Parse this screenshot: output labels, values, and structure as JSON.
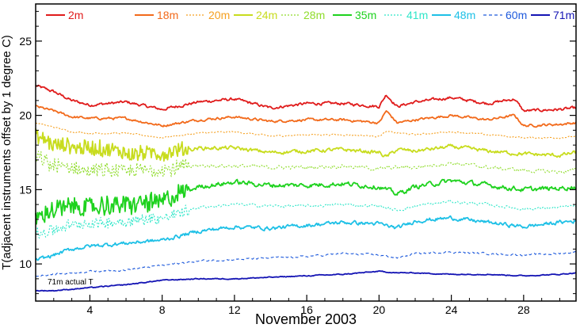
{
  "chart_data": {
    "type": "line",
    "title": "",
    "xlabel": "November 2003",
    "ylabel": "T(adjacent instruments offset by 1 degree C)",
    "xlim": [
      1,
      30.9
    ],
    "ylim": [
      7.5,
      27.5
    ],
    "xticks": [
      4,
      8,
      12,
      16,
      20,
      24,
      28
    ],
    "yticks": [
      10,
      15,
      20,
      25
    ],
    "grid": false,
    "legend_position": "top",
    "annotation": "71m actual T",
    "series": [
      {
        "name": "2m",
        "color": "#e01b1b",
        "dash": "solid",
        "anchors": [
          [
            1,
            22.0
          ],
          [
            2,
            21.6
          ],
          [
            3,
            21.0
          ],
          [
            4,
            20.7
          ],
          [
            6,
            20.9
          ],
          [
            8,
            20.4
          ],
          [
            10,
            20.9
          ],
          [
            12,
            21.1
          ],
          [
            14,
            20.5
          ],
          [
            16,
            20.8
          ],
          [
            18,
            20.8
          ],
          [
            20,
            20.6
          ],
          [
            20.4,
            21.4
          ],
          [
            21,
            20.6
          ],
          [
            22,
            20.9
          ],
          [
            24,
            21.2
          ],
          [
            26,
            20.8
          ],
          [
            27.5,
            21.1
          ],
          [
            28,
            20.3
          ],
          [
            30,
            20.4
          ],
          [
            30.9,
            20.5
          ]
        ]
      },
      {
        "name": "18m",
        "color": "#f26a1b",
        "dash": "solid",
        "anchors": [
          [
            1,
            20.6
          ],
          [
            2,
            20.3
          ],
          [
            3,
            19.9
          ],
          [
            4,
            19.8
          ],
          [
            6,
            19.8
          ],
          [
            8,
            19.3
          ],
          [
            10,
            19.7
          ],
          [
            12,
            19.9
          ],
          [
            14,
            19.6
          ],
          [
            16,
            19.7
          ],
          [
            18,
            19.7
          ],
          [
            20,
            19.5
          ],
          [
            20.4,
            20.3
          ],
          [
            21,
            19.5
          ],
          [
            22,
            19.7
          ],
          [
            24,
            20.0
          ],
          [
            26,
            19.7
          ],
          [
            27.5,
            20.0
          ],
          [
            28,
            19.3
          ],
          [
            30,
            19.4
          ],
          [
            30.9,
            19.5
          ]
        ]
      },
      {
        "name": "20m",
        "color": "#f5a020",
        "dash": "dotted",
        "anchors": [
          [
            1,
            19.5
          ],
          [
            2,
            19.2
          ],
          [
            3,
            18.9
          ],
          [
            4,
            18.8
          ],
          [
            6,
            18.8
          ],
          [
            8,
            18.5
          ],
          [
            10,
            18.8
          ],
          [
            12,
            18.9
          ],
          [
            14,
            18.6
          ],
          [
            16,
            18.7
          ],
          [
            18,
            18.7
          ],
          [
            20,
            18.6
          ],
          [
            20.4,
            18.9
          ],
          [
            22,
            18.7
          ],
          [
            24,
            18.9
          ],
          [
            26,
            18.7
          ],
          [
            28,
            18.5
          ],
          [
            30,
            18.5
          ],
          [
            30.9,
            18.6
          ]
        ]
      },
      {
        "name": "24m",
        "color": "#c8dc1e",
        "dash": "solid",
        "anchors": [
          [
            1,
            18.6
          ],
          [
            2,
            18.0
          ],
          [
            3,
            17.9
          ],
          [
            4,
            17.8
          ],
          [
            6,
            17.5
          ],
          [
            8,
            17.4
          ],
          [
            10,
            17.8
          ],
          [
            12,
            17.8
          ],
          [
            14,
            17.5
          ],
          [
            16,
            17.6
          ],
          [
            18,
            17.7
          ],
          [
            20,
            17.5
          ],
          [
            20.4,
            17.2
          ],
          [
            21,
            17.7
          ],
          [
            22,
            17.6
          ],
          [
            24,
            17.9
          ],
          [
            26,
            17.6
          ],
          [
            28,
            17.4
          ],
          [
            30,
            17.3
          ],
          [
            30.9,
            17.5
          ]
        ]
      },
      {
        "name": "28m",
        "color": "#8fdc2a",
        "dash": "dotted",
        "anchors": [
          [
            1,
            17.2
          ],
          [
            2,
            16.6
          ],
          [
            3,
            16.4
          ],
          [
            4,
            16.3
          ],
          [
            6,
            16.2
          ],
          [
            8,
            16.4
          ],
          [
            10,
            16.6
          ],
          [
            12,
            16.6
          ],
          [
            14,
            16.5
          ],
          [
            16,
            16.5
          ],
          [
            18,
            16.6
          ],
          [
            20,
            16.4
          ],
          [
            21,
            16.5
          ],
          [
            22,
            16.5
          ],
          [
            24,
            16.8
          ],
          [
            26,
            16.5
          ],
          [
            28,
            16.3
          ],
          [
            30,
            16.2
          ],
          [
            30.9,
            16.3
          ]
        ]
      },
      {
        "name": "35m",
        "color": "#1ed21e",
        "dash": "solid",
        "anchors": [
          [
            1,
            13.2
          ],
          [
            2,
            13.6
          ],
          [
            3,
            13.9
          ],
          [
            4,
            13.8
          ],
          [
            6,
            14.0
          ],
          [
            8,
            14.2
          ],
          [
            10,
            15.2
          ],
          [
            12,
            15.5
          ],
          [
            14,
            15.3
          ],
          [
            16,
            15.3
          ],
          [
            18,
            15.4
          ],
          [
            20,
            15.2
          ],
          [
            21,
            14.7
          ],
          [
            22,
            15.2
          ],
          [
            24,
            15.6
          ],
          [
            26,
            15.3
          ],
          [
            28,
            15.0
          ],
          [
            30,
            15.1
          ],
          [
            30.9,
            15.2
          ]
        ]
      },
      {
        "name": "41m",
        "color": "#2ee6c8",
        "dash": "dotted",
        "anchors": [
          [
            1,
            12.0
          ],
          [
            2,
            12.3
          ],
          [
            3,
            12.6
          ],
          [
            4,
            12.7
          ],
          [
            6,
            12.9
          ],
          [
            8,
            13.1
          ],
          [
            10,
            13.8
          ],
          [
            12,
            14.0
          ],
          [
            14,
            13.9
          ],
          [
            16,
            13.9
          ],
          [
            18,
            14.0
          ],
          [
            20,
            13.9
          ],
          [
            21,
            13.6
          ],
          [
            22,
            13.9
          ],
          [
            24,
            14.2
          ],
          [
            26,
            14.0
          ],
          [
            28,
            13.7
          ],
          [
            30,
            13.8
          ],
          [
            30.9,
            13.9
          ]
        ]
      },
      {
        "name": "48m",
        "color": "#1ec0e6",
        "dash": "solid",
        "anchors": [
          [
            1,
            10.2
          ],
          [
            2,
            10.6
          ],
          [
            3,
            11.0
          ],
          [
            4,
            11.2
          ],
          [
            6,
            11.4
          ],
          [
            8,
            11.6
          ],
          [
            10,
            12.2
          ],
          [
            12,
            12.5
          ],
          [
            14,
            12.4
          ],
          [
            16,
            12.6
          ],
          [
            18,
            12.8
          ],
          [
            20,
            12.7
          ],
          [
            21,
            12.4
          ],
          [
            22,
            12.9
          ],
          [
            24,
            13.1
          ],
          [
            26,
            12.8
          ],
          [
            28,
            12.5
          ],
          [
            30,
            12.8
          ],
          [
            30.9,
            12.9
          ]
        ]
      },
      {
        "name": "60m",
        "color": "#1e5adc",
        "dash": "dashed",
        "anchors": [
          [
            1,
            9.2
          ],
          [
            2,
            9.3
          ],
          [
            3,
            9.4
          ],
          [
            4,
            9.5
          ],
          [
            6,
            9.6
          ],
          [
            8,
            9.9
          ],
          [
            10,
            10.2
          ],
          [
            12,
            10.3
          ],
          [
            14,
            10.4
          ],
          [
            16,
            10.5
          ],
          [
            18,
            10.7
          ],
          [
            20,
            10.6
          ],
          [
            21,
            10.4
          ],
          [
            22,
            10.7
          ],
          [
            24,
            10.8
          ],
          [
            26,
            10.7
          ],
          [
            28,
            10.6
          ],
          [
            30,
            10.7
          ],
          [
            30.9,
            10.8
          ]
        ]
      },
      {
        "name": "71m",
        "color": "#1414b4",
        "dash": "solid",
        "anchors": [
          [
            1,
            8.2
          ],
          [
            2,
            8.2
          ],
          [
            3,
            8.3
          ],
          [
            4,
            8.4
          ],
          [
            6,
            8.6
          ],
          [
            8,
            8.9
          ],
          [
            10,
            9.0
          ],
          [
            12,
            9.0
          ],
          [
            14,
            9.1
          ],
          [
            16,
            9.2
          ],
          [
            18,
            9.3
          ],
          [
            20,
            9.5
          ],
          [
            21,
            9.4
          ],
          [
            22,
            9.4
          ],
          [
            24,
            9.3
          ],
          [
            26,
            9.3
          ],
          [
            28,
            9.2
          ],
          [
            30,
            9.3
          ],
          [
            30.9,
            9.4
          ]
        ]
      }
    ],
    "noise": [
      0.15,
      0.13,
      0.08,
      0.2,
      0.2,
      0.25,
      0.15,
      0.2,
      0.1,
      0.05
    ]
  }
}
